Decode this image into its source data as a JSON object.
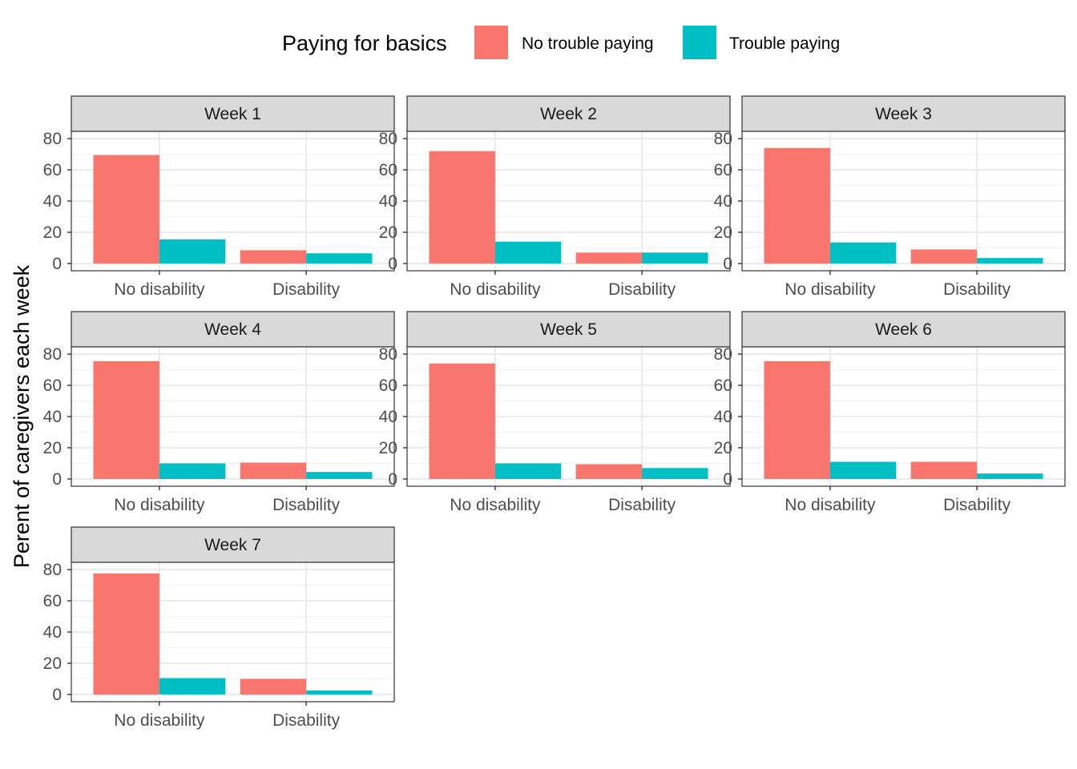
{
  "chart_data": {
    "type": "bar",
    "ylabel": "Perent of caregivers each week",
    "xlabel": "",
    "legend": {
      "title": "Paying for basics",
      "position": "top"
    },
    "categories": [
      "No disability",
      "Disability"
    ],
    "series_names": [
      "No trouble paying",
      "Trouble paying"
    ],
    "colors": {
      "No trouble paying": "#F8766D",
      "Trouble paying": "#00BFC4"
    },
    "ylim": [
      0,
      80
    ],
    "yticks": [
      0,
      20,
      40,
      60,
      80
    ],
    "grid": true,
    "panels": [
      {
        "title": "Week 1",
        "series": [
          {
            "name": "No trouble paying",
            "values": [
              69.5,
              8.5
            ]
          },
          {
            "name": "Trouble paying",
            "values": [
              15.5,
              6.5
            ]
          }
        ]
      },
      {
        "title": "Week 2",
        "series": [
          {
            "name": "No trouble paying",
            "values": [
              72,
              7
            ]
          },
          {
            "name": "Trouble paying",
            "values": [
              14,
              7
            ]
          }
        ]
      },
      {
        "title": "Week 3",
        "series": [
          {
            "name": "No trouble paying",
            "values": [
              74,
              9
            ]
          },
          {
            "name": "Trouble paying",
            "values": [
              13.5,
              3.5
            ]
          }
        ]
      },
      {
        "title": "Week 4",
        "series": [
          {
            "name": "No trouble paying",
            "values": [
              75.5,
              10.5
            ]
          },
          {
            "name": "Trouble paying",
            "values": [
              10,
              4.5
            ]
          }
        ]
      },
      {
        "title": "Week 5",
        "series": [
          {
            "name": "No trouble paying",
            "values": [
              74,
              9.5
            ]
          },
          {
            "name": "Trouble paying",
            "values": [
              10,
              7
            ]
          }
        ]
      },
      {
        "title": "Week 6",
        "series": [
          {
            "name": "No trouble paying",
            "values": [
              75.5,
              11
            ]
          },
          {
            "name": "Trouble paying",
            "values": [
              11,
              3.5
            ]
          }
        ]
      },
      {
        "title": "Week 7",
        "series": [
          {
            "name": "No trouble paying",
            "values": [
              77.5,
              10
            ]
          },
          {
            "name": "Trouble paying",
            "values": [
              10.5,
              2.5
            ]
          }
        ]
      }
    ]
  }
}
